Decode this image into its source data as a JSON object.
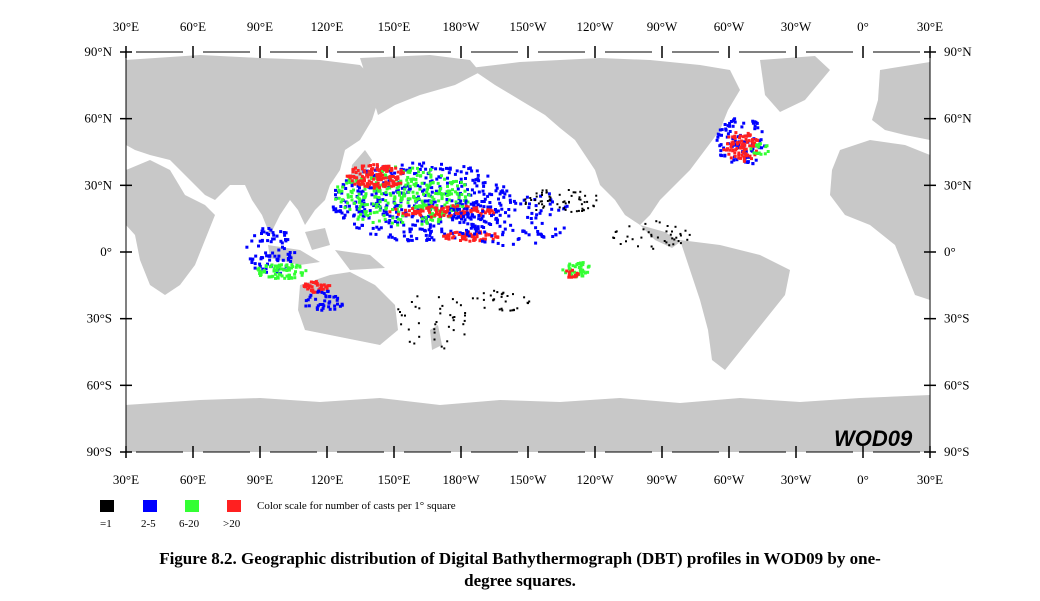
{
  "map": {
    "watermark": "WOD09",
    "lon_labels": [
      "30°E",
      "60°E",
      "90°E",
      "120°E",
      "150°E",
      "180°W",
      "150°W",
      "120°W",
      "90°W",
      "60°W",
      "30°W",
      "0°",
      "30°E"
    ],
    "lat_labels": [
      "90°N",
      "60°N",
      "30°N",
      "0°",
      "30°S",
      "60°S",
      "90°S"
    ],
    "colors": {
      "land": "#c8c8c8",
      "ocean": "#ffffff",
      "bin_1": "#000000",
      "bin_2_5": "#0000ff",
      "bin_6_20": "#33ff33",
      "bin_gt20": "#ff2020"
    }
  },
  "legend": {
    "bins": [
      {
        "label": "=1",
        "color": "#000000"
      },
      {
        "label": "2-5",
        "color": "#0000ff"
      },
      {
        "label": "6-20",
        "color": "#33ff33"
      },
      {
        "label": ">20",
        "color": "#ff2020"
      }
    ],
    "title": "Color scale for number of casts per 1° square"
  },
  "caption": {
    "line1": "Figure 8.2. Geographic distribution of Digital Bathythermograph (DBT) profiles in WOD09 by one-",
    "line2": "degree squares."
  }
}
